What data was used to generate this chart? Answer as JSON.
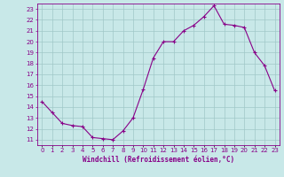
{
  "hours": [
    0,
    1,
    2,
    3,
    4,
    5,
    6,
    7,
    8,
    9,
    10,
    11,
    12,
    13,
    14,
    15,
    16,
    17,
    18,
    19,
    20,
    21,
    22,
    23
  ],
  "values": [
    14.5,
    13.5,
    12.5,
    12.3,
    12.2,
    11.2,
    11.1,
    11.0,
    11.8,
    13.0,
    15.6,
    18.5,
    20.0,
    20.0,
    21.0,
    21.5,
    22.3,
    23.3,
    21.6,
    21.5,
    21.3,
    19.0,
    17.8,
    15.5
  ],
  "line_color": "#880088",
  "marker": "+",
  "marker_size": 3,
  "marker_linewidth": 0.8,
  "bg_color": "#c8e8e8",
  "grid_color": "#a0c8c8",
  "xlabel": "Windchill (Refroidissement éolien,°C)",
  "xlabel_color": "#880088",
  "tick_color": "#880088",
  "xlim": [
    -0.5,
    23.5
  ],
  "ylim": [
    10.5,
    23.5
  ],
  "yticks": [
    11,
    12,
    13,
    14,
    15,
    16,
    17,
    18,
    19,
    20,
    21,
    22,
    23
  ],
  "xtick_labels": [
    "0",
    "1",
    "2",
    "3",
    "4",
    "5",
    "6",
    "7",
    "8",
    "9",
    "10",
    "11",
    "12",
    "13",
    "14",
    "15",
    "16",
    "17",
    "18",
    "19",
    "20",
    "21",
    "22",
    "23"
  ],
  "tick_fontsize": 5.0,
  "xlabel_fontsize": 5.5,
  "linewidth": 0.8
}
